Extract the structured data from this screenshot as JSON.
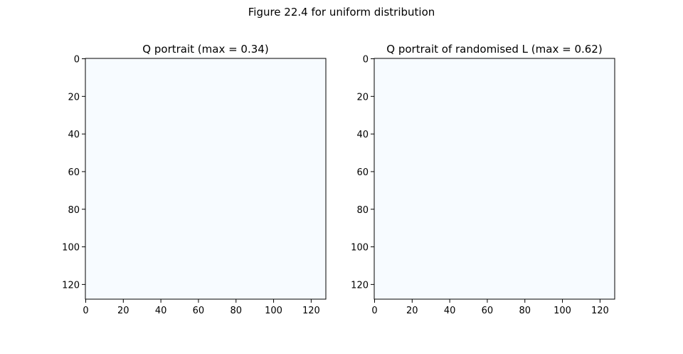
{
  "figure": {
    "suptitle": "Figure 22.4 for uniform distribution"
  },
  "chart_data": [
    {
      "type": "heatmap",
      "title": "Q portrait (max =  0.34)",
      "xlabel": "",
      "ylabel": "",
      "xlim": [
        0,
        128
      ],
      "ylim": [
        128,
        0
      ],
      "xticks": [
        0,
        20,
        40,
        60,
        80,
        100,
        120
      ],
      "yticks": [
        0,
        20,
        40,
        60,
        80,
        100,
        120
      ],
      "max": 0.34,
      "grid": false,
      "fill_color": "#f7fbff"
    },
    {
      "type": "heatmap",
      "title": "Q portrait of randomised L (max =  0.62)",
      "xlabel": "",
      "ylabel": "",
      "xlim": [
        0,
        128
      ],
      "ylim": [
        128,
        0
      ],
      "xticks": [
        0,
        20,
        40,
        60,
        80,
        100,
        120
      ],
      "yticks": [
        0,
        20,
        40,
        60,
        80,
        100,
        120
      ],
      "max": 0.62,
      "grid": false,
      "fill_color": "#f7fbff"
    }
  ]
}
